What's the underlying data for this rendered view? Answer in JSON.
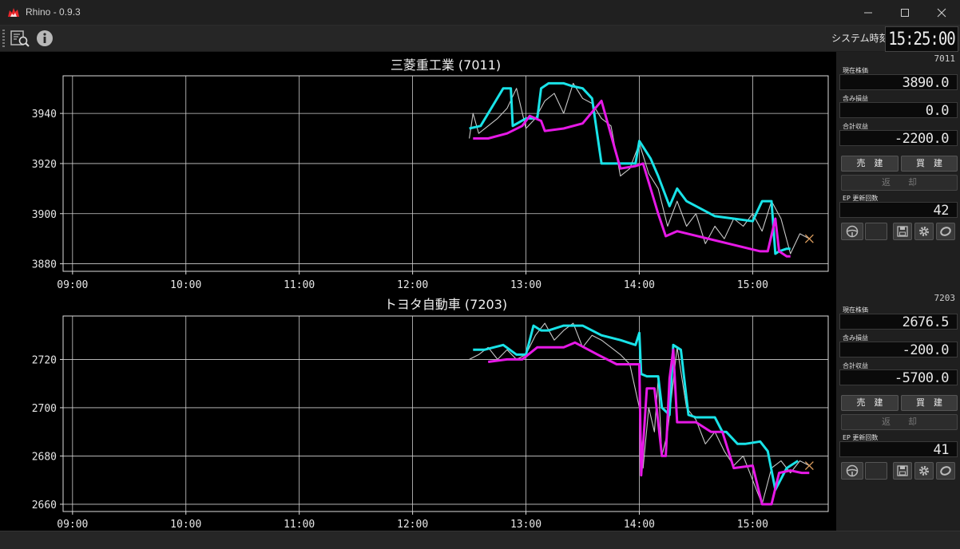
{
  "app": {
    "title": "Rhino - 0.9.3"
  },
  "clock": {
    "label": "システム時刻",
    "value": "15:25:00"
  },
  "colors": {
    "ask": "#19e3e8",
    "bid": "#e619e6",
    "price": "#c8c8c8",
    "marker": "#e0a060",
    "grid": "#cfcfcf"
  },
  "x_ticks": [
    "09:00",
    "10:00",
    "11:00",
    "12:00",
    "13:00",
    "14:00",
    "15:00"
  ],
  "panels": [
    {
      "code": "7011",
      "price_label": "現在株価",
      "price": "3890.0",
      "unrealized_label": "含み損益",
      "unrealized": "0.0",
      "total_label": "合計収益",
      "total": "-2200.0",
      "sell_label": "売　建",
      "buy_label": "買　建",
      "repay_label": "返　　却",
      "ep_label": "EP 更新回数",
      "ep_count": "42"
    },
    {
      "code": "7203",
      "price_label": "現在株価",
      "price": "2676.5",
      "unrealized_label": "含み損益",
      "unrealized": "-200.0",
      "total_label": "合計収益",
      "total": "-5700.0",
      "sell_label": "売　建",
      "buy_label": "買　建",
      "repay_label": "返　　却",
      "ep_label": "EP 更新回数",
      "ep_count": "41"
    }
  ],
  "chart_data": [
    {
      "type": "line",
      "title": "三菱重工業 (7011)",
      "x_unit": "time",
      "xlim": [
        "08:55",
        "15:40"
      ],
      "ylim": [
        3877,
        3955
      ],
      "y_ticks": [
        3880,
        3900,
        3920,
        3940
      ],
      "series": [
        {
          "name": "",
          "color": "#c8c8c8",
          "x": [
            "12:30",
            "12:32",
            "12:35",
            "12:40",
            "12:45",
            "12:50",
            "12:55",
            "13:00",
            "13:05",
            "13:10",
            "13:15",
            "13:20",
            "13:25",
            "13:30",
            "13:35",
            "13:40",
            "13:45",
            "13:50",
            "13:55",
            "14:00",
            "14:05",
            "14:10",
            "14:15",
            "14:20",
            "14:25",
            "14:30",
            "14:35",
            "14:40",
            "14:45",
            "14:50",
            "14:55",
            "15:00",
            "15:05",
            "15:10",
            "15:15",
            "15:20",
            "15:25",
            "15:30"
          ],
          "y": [
            3930,
            3940,
            3932,
            3935,
            3938,
            3942,
            3950,
            3934,
            3938,
            3945,
            3948,
            3940,
            3952,
            3946,
            3944,
            3938,
            3935,
            3915,
            3918,
            3928,
            3916,
            3910,
            3895,
            3905,
            3895,
            3900,
            3888,
            3895,
            3890,
            3898,
            3895,
            3900,
            3893,
            3905,
            3898,
            3884,
            3892,
            3890
          ]
        },
        {
          "name": "",
          "color": "#19e3e8",
          "x": [
            "12:30",
            "12:36",
            "12:48",
            "12:52",
            "12:53",
            "13:00",
            "13:00",
            "13:06",
            "13:08",
            "13:12",
            "13:20",
            "13:24",
            "13:30",
            "13:35",
            "13:40",
            "13:48",
            "13:50",
            "13:58",
            "14:00",
            "14:06",
            "14:10",
            "14:16",
            "14:20",
            "14:25",
            "14:30",
            "14:40",
            "14:50",
            "15:00",
            "15:05",
            "15:10",
            "15:12",
            "15:14",
            "15:18",
            "15:20"
          ],
          "y": [
            3934,
            3935,
            3950,
            3950,
            3935,
            3938,
            3938,
            3938,
            3950,
            3952,
            3952,
            3951,
            3950,
            3946,
            3920,
            3920,
            3920,
            3920,
            3929,
            3922,
            3915,
            3903,
            3910,
            3905,
            3903,
            3899,
            3898,
            3897,
            3905,
            3905,
            3884,
            3885,
            3886,
            3886
          ]
        },
        {
          "name": "",
          "color": "#e619e6",
          "x": [
            "12:32",
            "12:40",
            "12:50",
            "12:58",
            "13:02",
            "13:08",
            "13:10",
            "13:20",
            "13:30",
            "13:40",
            "13:50",
            "13:58",
            "14:02",
            "14:10",
            "14:14",
            "14:20",
            "15:04",
            "15:08",
            "15:12",
            "15:14",
            "15:18",
            "15:20"
          ],
          "y": [
            3930,
            3930,
            3932,
            3935,
            3939,
            3937,
            3933,
            3934,
            3936,
            3945,
            3918,
            3919,
            3920,
            3900,
            3891,
            3893,
            3885,
            3885,
            3898,
            3885,
            3883,
            3883
          ]
        }
      ]
    },
    {
      "type": "line",
      "title": "トヨタ自動車 (7203)",
      "x_unit": "time",
      "xlim": [
        "08:55",
        "15:40"
      ],
      "ylim": [
        2657,
        2738
      ],
      "y_ticks": [
        2660,
        2680,
        2700,
        2720
      ],
      "series": [
        {
          "name": "",
          "color": "#c8c8c8",
          "x": [
            "12:30",
            "12:35",
            "12:40",
            "12:45",
            "12:50",
            "12:55",
            "13:00",
            "13:05",
            "13:10",
            "13:15",
            "13:20",
            "13:25",
            "13:30",
            "13:35",
            "13:40",
            "13:45",
            "13:50",
            "13:55",
            "14:00",
            "14:02",
            "14:05",
            "14:08",
            "14:10",
            "14:12",
            "14:15",
            "14:20",
            "14:25",
            "14:30",
            "14:35",
            "14:40",
            "14:45",
            "14:50",
            "14:55",
            "15:00",
            "15:05",
            "15:10",
            "15:15",
            "15:20",
            "15:25",
            "15:30"
          ],
          "y": [
            2720,
            2722,
            2725,
            2720,
            2724,
            2720,
            2722,
            2730,
            2735,
            2728,
            2732,
            2735,
            2725,
            2730,
            2728,
            2725,
            2722,
            2718,
            2700,
            2675,
            2700,
            2690,
            2712,
            2680,
            2690,
            2725,
            2700,
            2695,
            2685,
            2690,
            2682,
            2676,
            2680,
            2670,
            2660,
            2675,
            2678,
            2673,
            2678,
            2676
          ]
        },
        {
          "name": "",
          "color": "#19e3e8",
          "x": [
            "12:32",
            "12:38",
            "12:48",
            "12:55",
            "13:00",
            "13:04",
            "13:08",
            "13:12",
            "13:20",
            "13:26",
            "13:30",
            "13:40",
            "13:50",
            "13:58",
            "14:00",
            "14:01",
            "14:04",
            "14:10",
            "14:12",
            "14:16",
            "14:18",
            "14:22",
            "14:26",
            "14:30",
            "14:40",
            "14:44",
            "14:46",
            "14:52",
            "14:56",
            "15:04",
            "15:08",
            "15:12",
            "15:18",
            "15:24"
          ],
          "y": [
            2724,
            2724,
            2726,
            2722,
            2722,
            2734,
            2732,
            2732,
            2734,
            2734,
            2734,
            2730,
            2728,
            2726,
            2731,
            2714,
            2713,
            2713,
            2700,
            2697,
            2726,
            2724,
            2697,
            2696,
            2696,
            2690,
            2690,
            2685,
            2685,
            2686,
            2682,
            2666,
            2675,
            2678
          ]
        },
        {
          "name": "",
          "color": "#e619e6",
          "x": [
            "12:40",
            "12:50",
            "12:58",
            "13:06",
            "13:12",
            "13:20",
            "13:26",
            "13:38",
            "13:48",
            "13:56",
            "14:00",
            "14:01",
            "14:04",
            "14:08",
            "14:12",
            "14:14",
            "14:16",
            "14:18",
            "14:20",
            "14:30",
            "14:38",
            "14:44",
            "14:50",
            "15:00",
            "15:05",
            "15:10",
            "15:14",
            "15:20",
            "15:26",
            "15:30"
          ],
          "y": [
            2719,
            2720,
            2720,
            2725,
            2725,
            2725,
            2727,
            2722,
            2718,
            2718,
            2718,
            2672,
            2708,
            2708,
            2680,
            2680,
            2712,
            2724,
            2694,
            2694,
            2690,
            2690,
            2675,
            2676,
            2660,
            2660,
            2673,
            2674,
            2673,
            2673
          ]
        }
      ],
      "marker": {
        "x": "15:30",
        "y": 2676
      }
    }
  ]
}
